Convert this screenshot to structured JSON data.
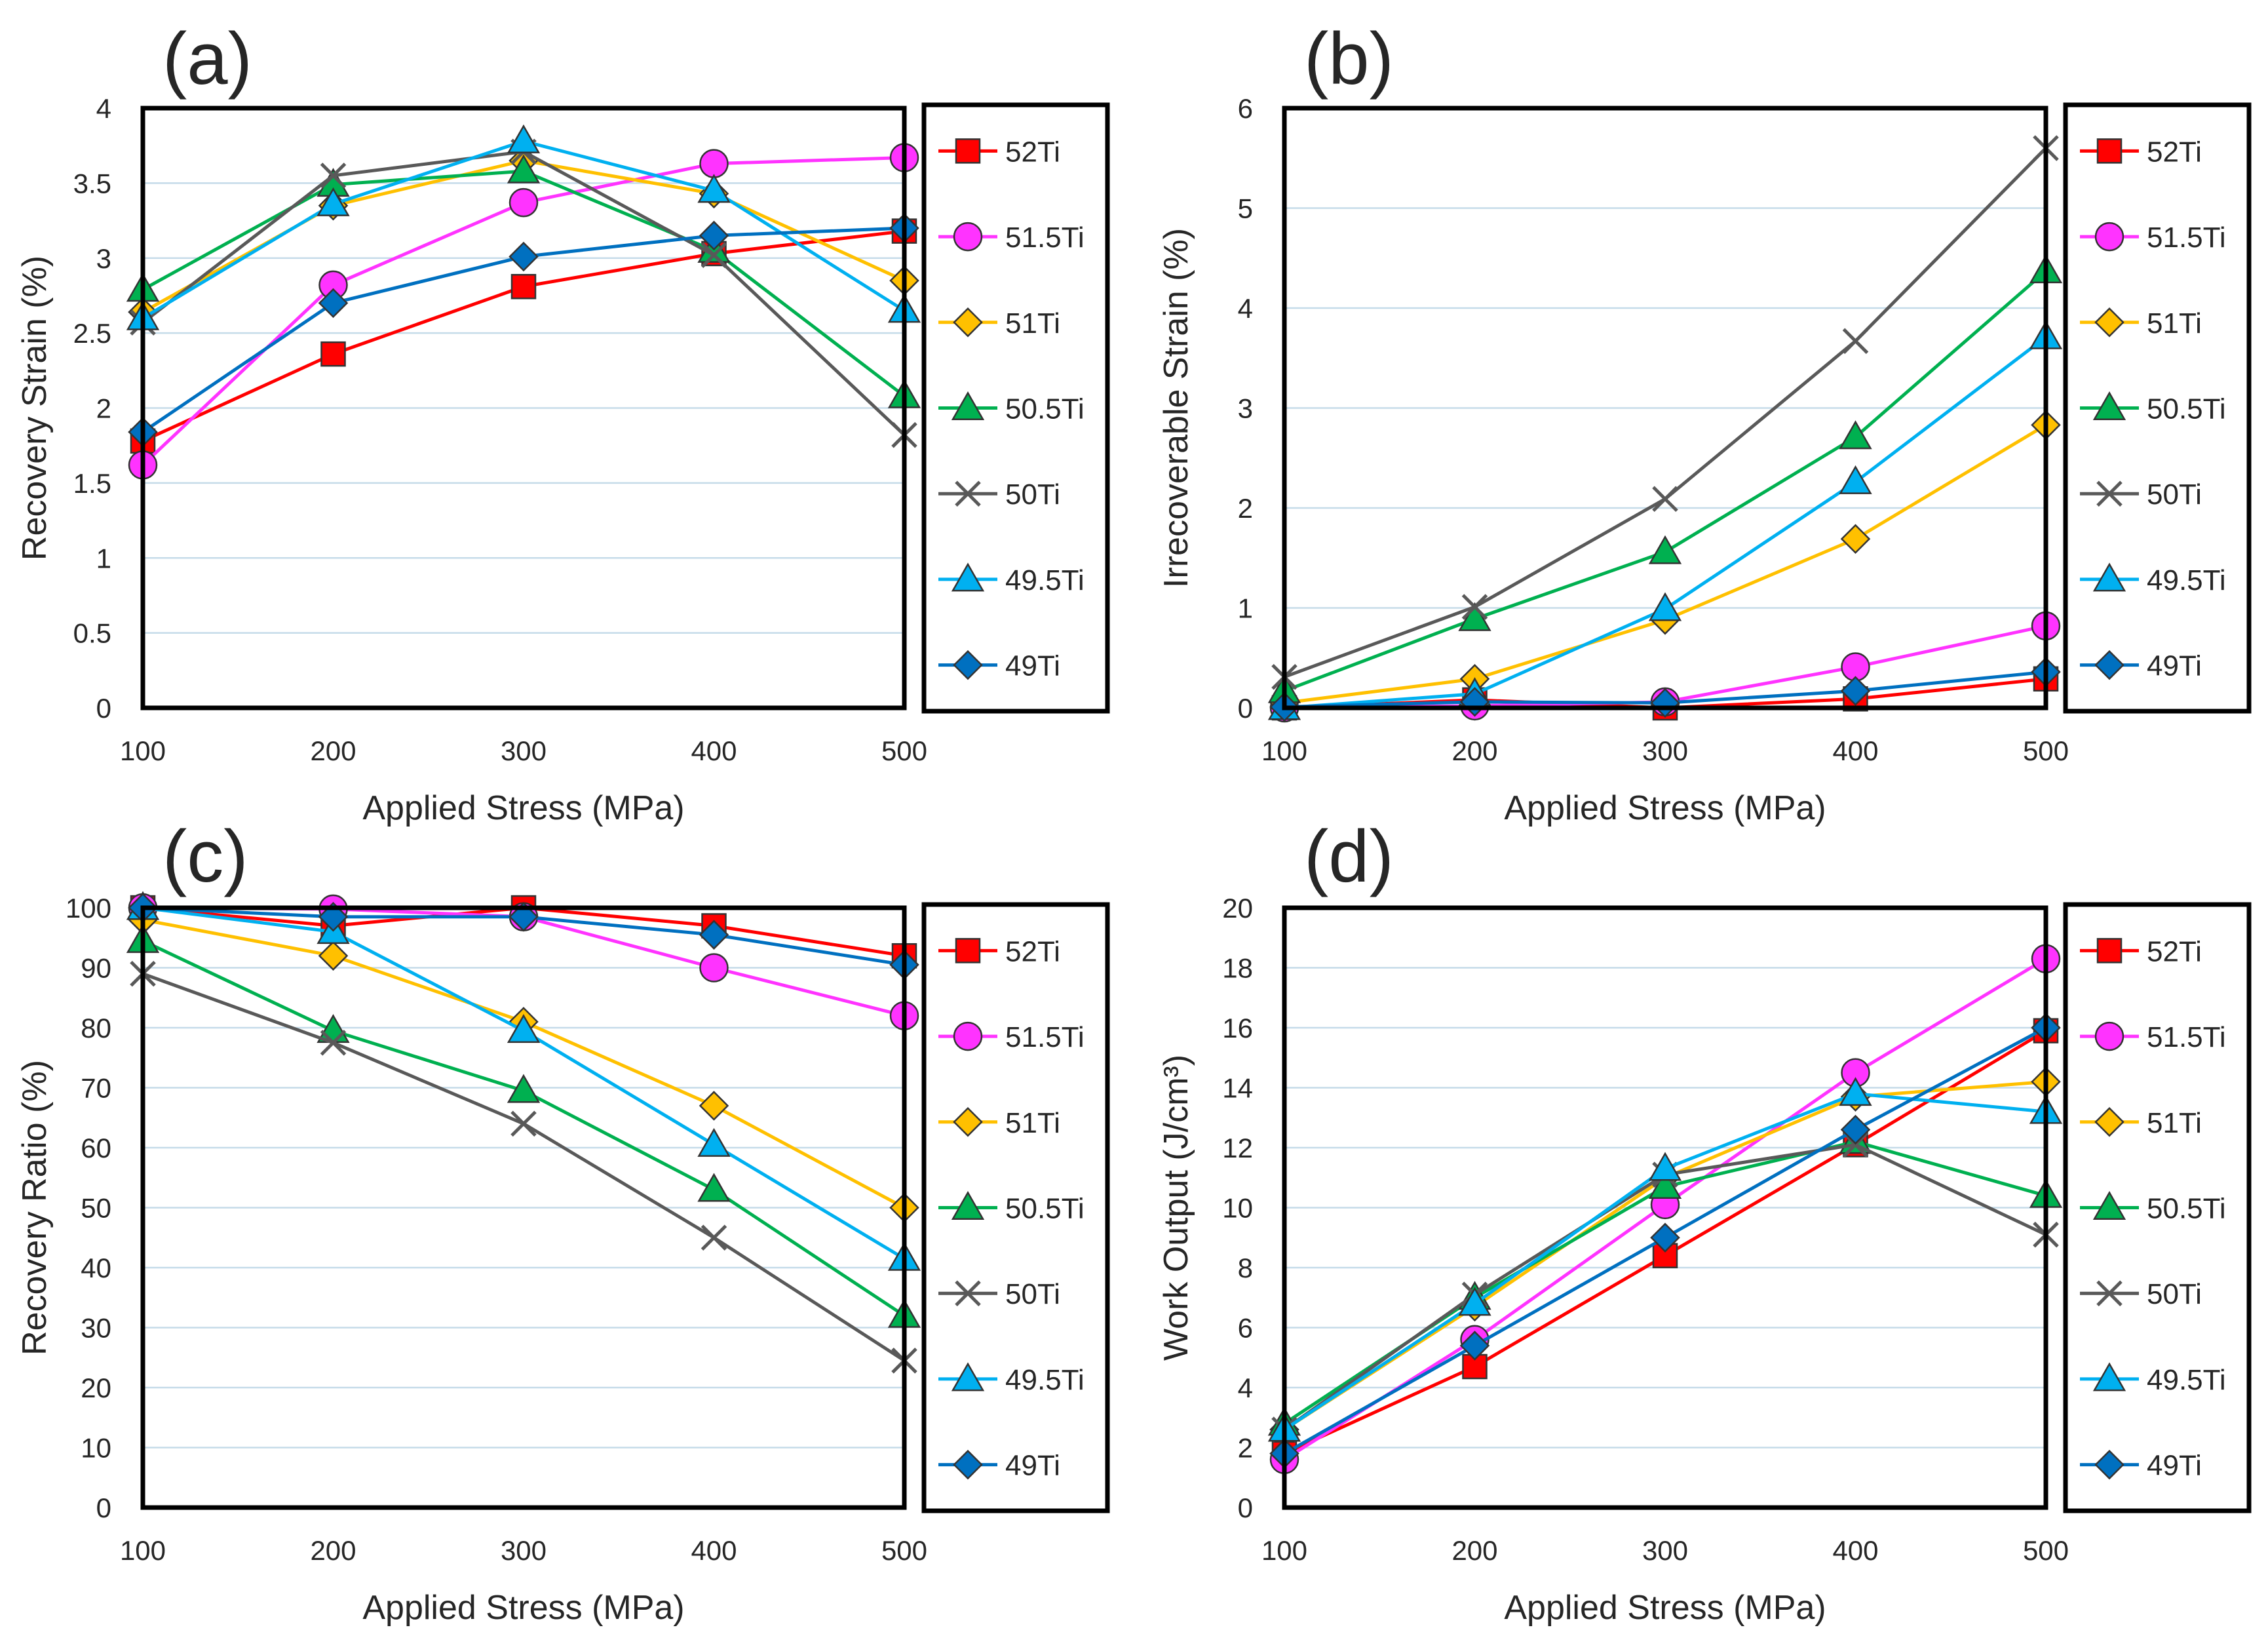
{
  "series_styles": [
    {
      "name": "52Ti",
      "color": "#ff0000",
      "marker": "square"
    },
    {
      "name": "51.5Ti",
      "color": "#ff33ff",
      "marker": "circle"
    },
    {
      "name": "51Ti",
      "color": "#ffc000",
      "marker": "diamond"
    },
    {
      "name": "50.5Ti",
      "color": "#00b050",
      "marker": "triangle"
    },
    {
      "name": "50Ti",
      "color": "#595959",
      "marker": "x"
    },
    {
      "name": "49.5Ti",
      "color": "#00b0f0",
      "marker": "triangle"
    },
    {
      "name": "49Ti",
      "color": "#0070c0",
      "marker": "diamond"
    }
  ],
  "chart_data": [
    {
      "panel": "(a)",
      "type": "line",
      "xlabel": "Applied Stress (MPa)",
      "ylabel": "Recovery Strain (%)",
      "x": [
        100,
        200,
        300,
        400,
        500
      ],
      "xlim": [
        100,
        500
      ],
      "ylim": [
        0,
        4
      ],
      "yticks": [
        0,
        0.5,
        1,
        1.5,
        2,
        2.5,
        3,
        3.5,
        4
      ],
      "grid": true,
      "legend": "right",
      "series": [
        {
          "name": "52Ti",
          "values": [
            1.78,
            2.36,
            2.81,
            3.03,
            3.18
          ]
        },
        {
          "name": "51.5Ti",
          "values": [
            1.62,
            2.82,
            3.37,
            3.63,
            3.67
          ]
        },
        {
          "name": "51Ti",
          "values": [
            2.64,
            3.35,
            3.65,
            3.43,
            2.85
          ]
        },
        {
          "name": "50.5Ti",
          "values": [
            2.79,
            3.49,
            3.58,
            3.05,
            2.08
          ]
        },
        {
          "name": "50Ti",
          "values": [
            2.57,
            3.55,
            3.71,
            3.02,
            1.82
          ]
        },
        {
          "name": "49.5Ti",
          "values": [
            2.6,
            3.36,
            3.78,
            3.45,
            2.65
          ]
        },
        {
          "name": "49Ti",
          "values": [
            1.84,
            2.7,
            3.01,
            3.15,
            3.2
          ]
        }
      ]
    },
    {
      "panel": "(b)",
      "type": "line",
      "xlabel": "Applied Stress (MPa)",
      "ylabel": "Irrecoverable Strain (%)",
      "x": [
        100,
        200,
        300,
        400,
        500
      ],
      "xlim": [
        100,
        500
      ],
      "ylim": [
        0,
        6
      ],
      "yticks": [
        0,
        1,
        2,
        3,
        4,
        5,
        6
      ],
      "grid": true,
      "legend": "right",
      "series": [
        {
          "name": "52Ti",
          "values": [
            0.0,
            0.08,
            0.0,
            0.09,
            0.29
          ]
        },
        {
          "name": "51.5Ti",
          "values": [
            0.0,
            0.02,
            0.06,
            0.41,
            0.82
          ]
        },
        {
          "name": "51Ti",
          "values": [
            0.05,
            0.29,
            0.88,
            1.69,
            2.83
          ]
        },
        {
          "name": "50.5Ti",
          "values": [
            0.17,
            0.89,
            1.56,
            2.71,
            4.37
          ]
        },
        {
          "name": "50Ti",
          "values": [
            0.31,
            1.01,
            2.09,
            3.67,
            5.6
          ]
        },
        {
          "name": "49.5Ti",
          "values": [
            0.0,
            0.14,
            0.99,
            2.26,
            3.71
          ]
        },
        {
          "name": "49Ti",
          "values": [
            0.01,
            0.06,
            0.05,
            0.17,
            0.36
          ]
        }
      ]
    },
    {
      "panel": "(c)",
      "type": "line",
      "xlabel": "Applied Stress (MPa)",
      "ylabel": "Recovery Ratio (%)",
      "x": [
        100,
        200,
        300,
        400,
        500
      ],
      "xlim": [
        100,
        500
      ],
      "ylim": [
        0,
        100
      ],
      "yticks": [
        0,
        10,
        20,
        30,
        40,
        50,
        60,
        70,
        80,
        90,
        100
      ],
      "grid": true,
      "legend": "right",
      "series": [
        {
          "name": "52Ti",
          "values": [
            100,
            97,
            100,
            97,
            92
          ]
        },
        {
          "name": "51.5Ti",
          "values": [
            100,
            99.8,
            98.5,
            90,
            82
          ]
        },
        {
          "name": "51Ti",
          "values": [
            98,
            92,
            81,
            67,
            50
          ]
        },
        {
          "name": "50.5Ti",
          "values": [
            94.5,
            79.5,
            69.5,
            53,
            32
          ]
        },
        {
          "name": "50Ti",
          "values": [
            89,
            77.5,
            64,
            45,
            24.5
          ]
        },
        {
          "name": "49.5Ti",
          "values": [
            100,
            96,
            79.5,
            60.5,
            41.5
          ]
        },
        {
          "name": "49Ti",
          "values": [
            100,
            98.5,
            98.5,
            95.5,
            90.5
          ]
        }
      ]
    },
    {
      "panel": "(d)",
      "type": "line",
      "xlabel": "Applied Stress (MPa)",
      "ylabel": "Work Output (J/cm³)",
      "x": [
        100,
        200,
        300,
        400,
        500
      ],
      "xlim": [
        100,
        500
      ],
      "ylim": [
        0,
        20
      ],
      "yticks": [
        0,
        2,
        4,
        6,
        8,
        10,
        12,
        14,
        16,
        18,
        20
      ],
      "grid": true,
      "legend": "right",
      "series": [
        {
          "name": "52Ti",
          "values": [
            1.8,
            4.7,
            8.4,
            12.1,
            15.9
          ]
        },
        {
          "name": "51.5Ti",
          "values": [
            1.6,
            5.6,
            10.1,
            14.5,
            18.3
          ]
        },
        {
          "name": "51Ti",
          "values": [
            2.6,
            6.7,
            11.0,
            13.7,
            14.2
          ]
        },
        {
          "name": "50.5Ti",
          "values": [
            2.8,
            7.0,
            10.7,
            12.2,
            10.4
          ]
        },
        {
          "name": "50Ti",
          "values": [
            2.6,
            7.1,
            11.1,
            12.1,
            9.1
          ]
        },
        {
          "name": "49.5Ti",
          "values": [
            2.6,
            6.8,
            11.3,
            13.8,
            13.2
          ]
        },
        {
          "name": "49Ti",
          "values": [
            1.8,
            5.4,
            9.0,
            12.6,
            16.0
          ]
        }
      ]
    }
  ]
}
